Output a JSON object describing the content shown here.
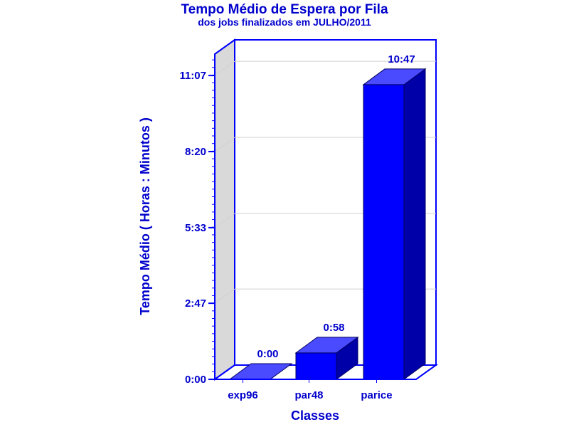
{
  "chart_data": {
    "type": "bar",
    "title": "Tempo Médio de Espera por Fila",
    "subtitle": "dos jobs finalizados em JULHO/2011",
    "xlabel": "Classes",
    "ylabel": "Tempo Médio ( Horas : Minutos )",
    "categories": [
      "exp96",
      "par48",
      "parice"
    ],
    "values": [
      0,
      58,
      647
    ],
    "value_labels": [
      "0:00",
      "0:58",
      "10:47"
    ],
    "unit": "minutes",
    "yticks": [
      0,
      167,
      333,
      500,
      667
    ],
    "ytick_labels": [
      "0:00",
      "2:47",
      "5:33",
      "8:20",
      "11:07"
    ],
    "ylim": [
      0,
      735
    ],
    "grid": true,
    "colors": {
      "bar_front": "#0000ff",
      "bar_top": "#4a4aff",
      "bar_side": "#0000a8",
      "text": "#0000cc",
      "axis": "#0000ff",
      "back_wall_left": "#d9d9d9",
      "gridline": "#d0d0d0"
    }
  }
}
